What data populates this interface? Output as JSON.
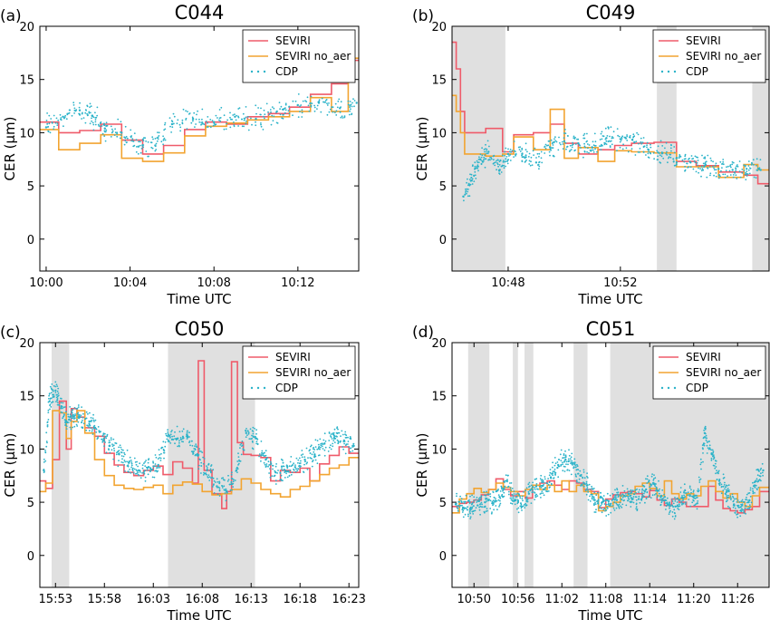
{
  "colors": {
    "seviri": "#ef5b6a",
    "seviri_no_aer": "#f2a431",
    "cdp": "#2bb3c9",
    "shade": "#e0e0e0"
  },
  "chart_data": [
    {
      "type": "line",
      "panel_label": "(a)",
      "title": "C044",
      "xlabel": "Time UTC",
      "ylabel": "CER (μm)",
      "xlim": [
        599.7,
        614.9
      ],
      "ylim": [
        -3,
        20
      ],
      "xticks": [
        {
          "v": 600,
          "label": "10:00"
        },
        {
          "v": 604,
          "label": "10:04"
        },
        {
          "v": 608,
          "label": "10:08"
        },
        {
          "v": 612,
          "label": "10:12"
        }
      ],
      "yticks": [
        0,
        5,
        10,
        15,
        20
      ],
      "shaded": [],
      "legend_position": "top-right",
      "series": [
        {
          "name": "SEVIRI",
          "style": "step",
          "x": [
            599.7,
            600.6,
            601.6,
            602.6,
            603.6,
            604.6,
            605.6,
            606.6,
            607.6,
            608.6,
            609.6,
            610.6,
            611.6,
            612.6,
            613.6,
            614.4
          ],
          "y": [
            11.0,
            10.0,
            10.2,
            10.8,
            9.3,
            8.0,
            8.8,
            10.3,
            11.0,
            10.8,
            11.5,
            11.8,
            12.4,
            13.6,
            14.6,
            16.8
          ]
        },
        {
          "name": "SEVIRI no_aer",
          "style": "step",
          "x": [
            599.7,
            600.6,
            601.6,
            602.6,
            603.6,
            604.6,
            605.6,
            606.6,
            607.6,
            608.6,
            609.6,
            610.6,
            611.6,
            612.6,
            613.6,
            614.4
          ],
          "y": [
            10.3,
            8.4,
            9.0,
            9.8,
            7.6,
            7.3,
            8.1,
            9.7,
            10.6,
            10.9,
            11.2,
            11.5,
            12.0,
            13.3,
            12.0,
            17.0
          ]
        },
        {
          "name": "CDP",
          "style": "dots",
          "x": [
            600.0,
            600.8,
            601.6,
            602.2,
            602.8,
            603.6,
            604.4,
            605.2,
            606.0,
            607.0,
            608.0,
            609.0,
            610.0,
            611.0,
            612.0,
            613.0,
            614.0,
            614.8
          ],
          "y": [
            10.5,
            11.5,
            12.1,
            11.6,
            10.4,
            10.0,
            8.7,
            8.8,
            10.8,
            11.3,
            11.0,
            11.5,
            11.3,
            12.0,
            12.6,
            12.8,
            12.3,
            12.8
          ]
        }
      ]
    },
    {
      "type": "line",
      "panel_label": "(b)",
      "title": "C049",
      "xlabel": "Time UTC",
      "ylabel": "CER (μm)",
      "xlim": [
        646.0,
        657.3
      ],
      "ylim": [
        -3,
        20
      ],
      "xticks": [
        {
          "v": 648,
          "label": "10:48"
        },
        {
          "v": 652,
          "label": "10:52"
        }
      ],
      "yticks": [
        0,
        5,
        10,
        15,
        20
      ],
      "shaded": [
        [
          646.0,
          647.9
        ],
        [
          653.3,
          654.0
        ],
        [
          656.7,
          657.3
        ]
      ],
      "legend_position": "top-right",
      "series": [
        {
          "name": "SEVIRI",
          "style": "step",
          "x": [
            646.0,
            646.15,
            646.3,
            646.45,
            647.2,
            647.8,
            648.2,
            648.9,
            649.5,
            650.0,
            650.5,
            651.2,
            651.8,
            652.4,
            653.2,
            654.0,
            654.7,
            655.5,
            656.4,
            656.9
          ],
          "y": [
            18.5,
            16.0,
            12.0,
            10.0,
            10.4,
            8.2,
            9.8,
            10.0,
            10.8,
            9.0,
            8.0,
            8.4,
            8.8,
            9.0,
            9.1,
            7.3,
            6.9,
            6.3,
            6.0,
            5.2
          ]
        },
        {
          "name": "SEVIRI no_aer",
          "style": "step",
          "x": [
            646.0,
            646.15,
            646.3,
            646.45,
            647.2,
            647.8,
            648.2,
            648.9,
            649.5,
            650.0,
            650.5,
            651.2,
            651.8,
            652.4,
            653.2,
            654.0,
            654.7,
            655.5,
            656.4,
            656.9
          ],
          "y": [
            13.5,
            12.0,
            10.0,
            8.0,
            7.8,
            8.0,
            9.6,
            8.4,
            12.2,
            7.6,
            8.6,
            7.3,
            8.3,
            8.2,
            8.1,
            6.8,
            6.8,
            5.8,
            7.0,
            6.5
          ]
        },
        {
          "name": "CDP",
          "style": "dots",
          "x": [
            646.4,
            646.7,
            647.0,
            647.3,
            647.7,
            648.0,
            648.5,
            649.0,
            649.5,
            650.0,
            650.5,
            651.0,
            651.5,
            652.0,
            652.5,
            653.0,
            653.5,
            654.0,
            654.5,
            655.0,
            655.5,
            656.0,
            656.5,
            657.0
          ],
          "y": [
            4.0,
            5.5,
            7.5,
            8.2,
            6.5,
            8.0,
            8.0,
            7.2,
            8.6,
            9.2,
            9.0,
            8.6,
            9.5,
            9.4,
            9.1,
            8.4,
            8.1,
            7.6,
            7.2,
            6.9,
            6.6,
            6.5,
            6.6,
            6.5
          ]
        }
      ]
    },
    {
      "type": "line",
      "panel_label": "(c)",
      "title": "C050",
      "xlabel": "Time UTC",
      "ylabel": "CER (μm)",
      "xlim": [
        951.4,
        984.0
      ],
      "ylim": [
        -3,
        20
      ],
      "xticks": [
        {
          "v": 953,
          "label": "15:53"
        },
        {
          "v": 958,
          "label": "15:58"
        },
        {
          "v": 963,
          "label": "16:03"
        },
        {
          "v": 968,
          "label": "16:08"
        },
        {
          "v": 973,
          "label": "16:13"
        },
        {
          "v": 978,
          "label": "16:18"
        },
        {
          "v": 983,
          "label": "16:23"
        }
      ],
      "yticks": [
        0,
        5,
        10,
        15,
        20
      ],
      "shaded": [
        [
          952.6,
          954.4
        ],
        [
          964.5,
          973.4
        ]
      ],
      "legend_position": "top-right",
      "series": [
        {
          "name": "SEVIRI",
          "style": "step",
          "x": [
            951.4,
            952.0,
            952.7,
            953.4,
            954.1,
            954.6,
            955.2,
            956.0,
            957.0,
            958.0,
            959.0,
            960.0,
            961.0,
            962.0,
            963.0,
            964.0,
            965.0,
            966.0,
            967.0,
            967.6,
            968.2,
            969.0,
            970.0,
            970.5,
            971.0,
            971.6,
            972.2,
            973.0,
            974.0,
            975.0,
            976.0,
            977.0,
            978.0,
            979.0,
            980.0,
            981.0,
            982.0,
            983.0
          ],
          "y": [
            7.0,
            6.3,
            9.0,
            14.5,
            10.0,
            13.8,
            13.0,
            12.0,
            11.2,
            9.6,
            8.5,
            7.8,
            7.5,
            8.0,
            8.4,
            7.6,
            8.8,
            8.2,
            6.8,
            18.3,
            8.0,
            5.8,
            4.4,
            6.0,
            18.2,
            10.6,
            9.5,
            9.4,
            9.2,
            7.0,
            8.0,
            7.8,
            8.2,
            7.0,
            8.6,
            9.4,
            10.2,
            9.6
          ]
        },
        {
          "name": "SEVIRI no_aer",
          "style": "step",
          "x": [
            951.4,
            952.0,
            952.7,
            953.4,
            954.1,
            954.6,
            955.2,
            956.0,
            957.0,
            958.0,
            959.0,
            960.0,
            961.0,
            962.0,
            963.0,
            964.0,
            965.0,
            966.0,
            967.0,
            968.0,
            969.0,
            970.0,
            971.0,
            972.0,
            973.0,
            974.0,
            975.0,
            976.0,
            977.0,
            978.0,
            979.0,
            980.0,
            981.0,
            982.0,
            983.0
          ],
          "y": [
            6.0,
            6.8,
            13.6,
            13.4,
            11.0,
            12.6,
            13.6,
            11.5,
            9.0,
            7.5,
            6.6,
            6.3,
            6.2,
            6.4,
            6.6,
            5.8,
            6.6,
            6.9,
            6.7,
            6.0,
            5.7,
            5.8,
            6.2,
            7.2,
            6.8,
            6.2,
            5.8,
            5.5,
            6.2,
            6.5,
            7.0,
            7.6,
            8.2,
            8.5,
            9.2
          ]
        },
        {
          "name": "CDP",
          "style": "dots",
          "x": [
            951.8,
            952.4,
            953.0,
            953.6,
            954.2,
            954.8,
            955.5,
            956.5,
            957.5,
            958.5,
            959.5,
            960.5,
            961.5,
            962.5,
            963.5,
            964.5,
            965.5,
            966.5,
            967.5,
            968.5,
            969.5,
            970.5,
            971.5,
            972.5,
            973.5,
            974.5,
            975.5,
            976.5,
            977.5,
            978.5,
            979.5,
            980.5,
            981.5,
            982.5,
            983.5
          ],
          "y": [
            8.0,
            14.5,
            15.5,
            14.0,
            12.5,
            13.2,
            13.0,
            12.6,
            11.6,
            10.3,
            9.5,
            8.7,
            8.0,
            8.3,
            8.5,
            11.2,
            11.0,
            11.2,
            9.5,
            8.0,
            6.5,
            6.0,
            8.0,
            11.5,
            11.0,
            9.0,
            7.8,
            7.9,
            8.3,
            9.0,
            9.5,
            10.5,
            11.0,
            10.8,
            10.3
          ]
        }
      ]
    },
    {
      "type": "line",
      "panel_label": "(d)",
      "title": "C051",
      "xlabel": "Time UTC",
      "ylabel": "CER (μm)",
      "xlim": [
        647.0,
        690.3
      ],
      "ylim": [
        -3,
        20
      ],
      "xticks": [
        {
          "v": 650,
          "label": "10:50"
        },
        {
          "v": 656,
          "label": "10:56"
        },
        {
          "v": 662,
          "label": "11:02"
        },
        {
          "v": 668,
          "label": "11:08"
        },
        {
          "v": 674,
          "label": "11:14"
        },
        {
          "v": 680,
          "label": "11:20"
        },
        {
          "v": 686,
          "label": "11:26"
        }
      ],
      "yticks": [
        0,
        5,
        10,
        15,
        20
      ],
      "shaded": [
        [
          649.2,
          652.1
        ],
        [
          655.3,
          656.0
        ],
        [
          656.9,
          658.1
        ],
        [
          663.6,
          665.5
        ],
        [
          668.6,
          690.3
        ]
      ],
      "legend_position": "top-right",
      "series": [
        {
          "name": "SEVIRI",
          "style": "step",
          "x": [
            647.0,
            648.0,
            649.0,
            650.0,
            651.0,
            652.0,
            653.0,
            654.0,
            655.0,
            656.0,
            657.0,
            658.0,
            659.0,
            660.0,
            661.0,
            662.0,
            663.0,
            664.0,
            665.0,
            666.0,
            667.0,
            668.0,
            669.0,
            670.0,
            671.0,
            672.0,
            673.0,
            674.0,
            675.0,
            676.0,
            677.0,
            678.0,
            679.0,
            680.0,
            681.0,
            682.0,
            683.0,
            684.0,
            685.0,
            686.0,
            687.0,
            688.0,
            689.0
          ],
          "y": [
            4.6,
            4.9,
            5.0,
            5.2,
            5.7,
            6.2,
            7.2,
            6.2,
            5.6,
            6.0,
            5.4,
            6.6,
            6.8,
            7.0,
            6.6,
            6.2,
            7.0,
            6.8,
            6.2,
            6.0,
            4.5,
            5.3,
            5.7,
            5.9,
            6.0,
            5.8,
            5.5,
            6.1,
            5.2,
            4.7,
            5.3,
            5.0,
            4.6,
            4.6,
            4.6,
            6.5,
            5.2,
            4.4,
            4.2,
            4.0,
            4.3,
            4.6,
            6.0
          ]
        },
        {
          "name": "SEVIRI no_aer",
          "style": "step",
          "x": [
            647.0,
            648.0,
            649.0,
            650.0,
            651.0,
            652.0,
            653.0,
            654.0,
            655.0,
            656.0,
            657.0,
            658.0,
            659.0,
            660.0,
            661.0,
            662.0,
            663.0,
            664.0,
            665.0,
            666.0,
            667.0,
            668.0,
            669.0,
            670.0,
            671.0,
            672.0,
            673.0,
            674.0,
            675.0,
            676.0,
            677.0,
            678.0,
            679.0,
            680.0,
            681.0,
            682.0,
            683.0,
            684.0,
            685.0,
            686.0,
            687.0,
            688.0,
            689.0
          ],
          "y": [
            4.0,
            5.3,
            5.8,
            6.3,
            5.9,
            6.2,
            6.8,
            6.4,
            6.0,
            5.6,
            6.2,
            6.6,
            6.2,
            6.6,
            6.0,
            7.0,
            6.0,
            6.6,
            6.0,
            5.8,
            4.2,
            4.6,
            5.0,
            5.6,
            5.8,
            6.5,
            6.8,
            6.3,
            5.6,
            7.0,
            5.8,
            5.3,
            5.8,
            5.6,
            6.5,
            7.0,
            6.0,
            5.4,
            5.8,
            5.0,
            4.6,
            5.6,
            6.4
          ]
        },
        {
          "name": "CDP",
          "style": "dots",
          "x": [
            647.5,
            648.5,
            649.5,
            650.5,
            651.5,
            652.5,
            653.5,
            654.5,
            655.5,
            656.5,
            657.5,
            658.5,
            659.5,
            660.5,
            661.5,
            662.5,
            663.5,
            664.5,
            665.5,
            666.5,
            667.5,
            668.5,
            669.5,
            670.5,
            671.5,
            672.5,
            673.5,
            674.5,
            675.5,
            676.5,
            677.5,
            678.5,
            679.5,
            680.5,
            681.5,
            682.5,
            683.5,
            684.5,
            685.5,
            686.5,
            687.5,
            688.5,
            689.5
          ],
          "y": [
            4.8,
            4.5,
            4.4,
            4.7,
            5.0,
            4.9,
            5.5,
            7.0,
            5.2,
            4.6,
            5.8,
            6.5,
            6.2,
            7.3,
            8.5,
            9.0,
            8.7,
            7.5,
            6.6,
            5.2,
            5.0,
            4.7,
            5.2,
            5.6,
            5.4,
            5.3,
            6.2,
            6.8,
            5.5,
            4.8,
            4.6,
            5.4,
            5.6,
            4.9,
            11.5,
            9.5,
            7.0,
            6.0,
            4.8,
            4.2,
            5.0,
            7.0,
            8.0
          ]
        }
      ]
    }
  ]
}
